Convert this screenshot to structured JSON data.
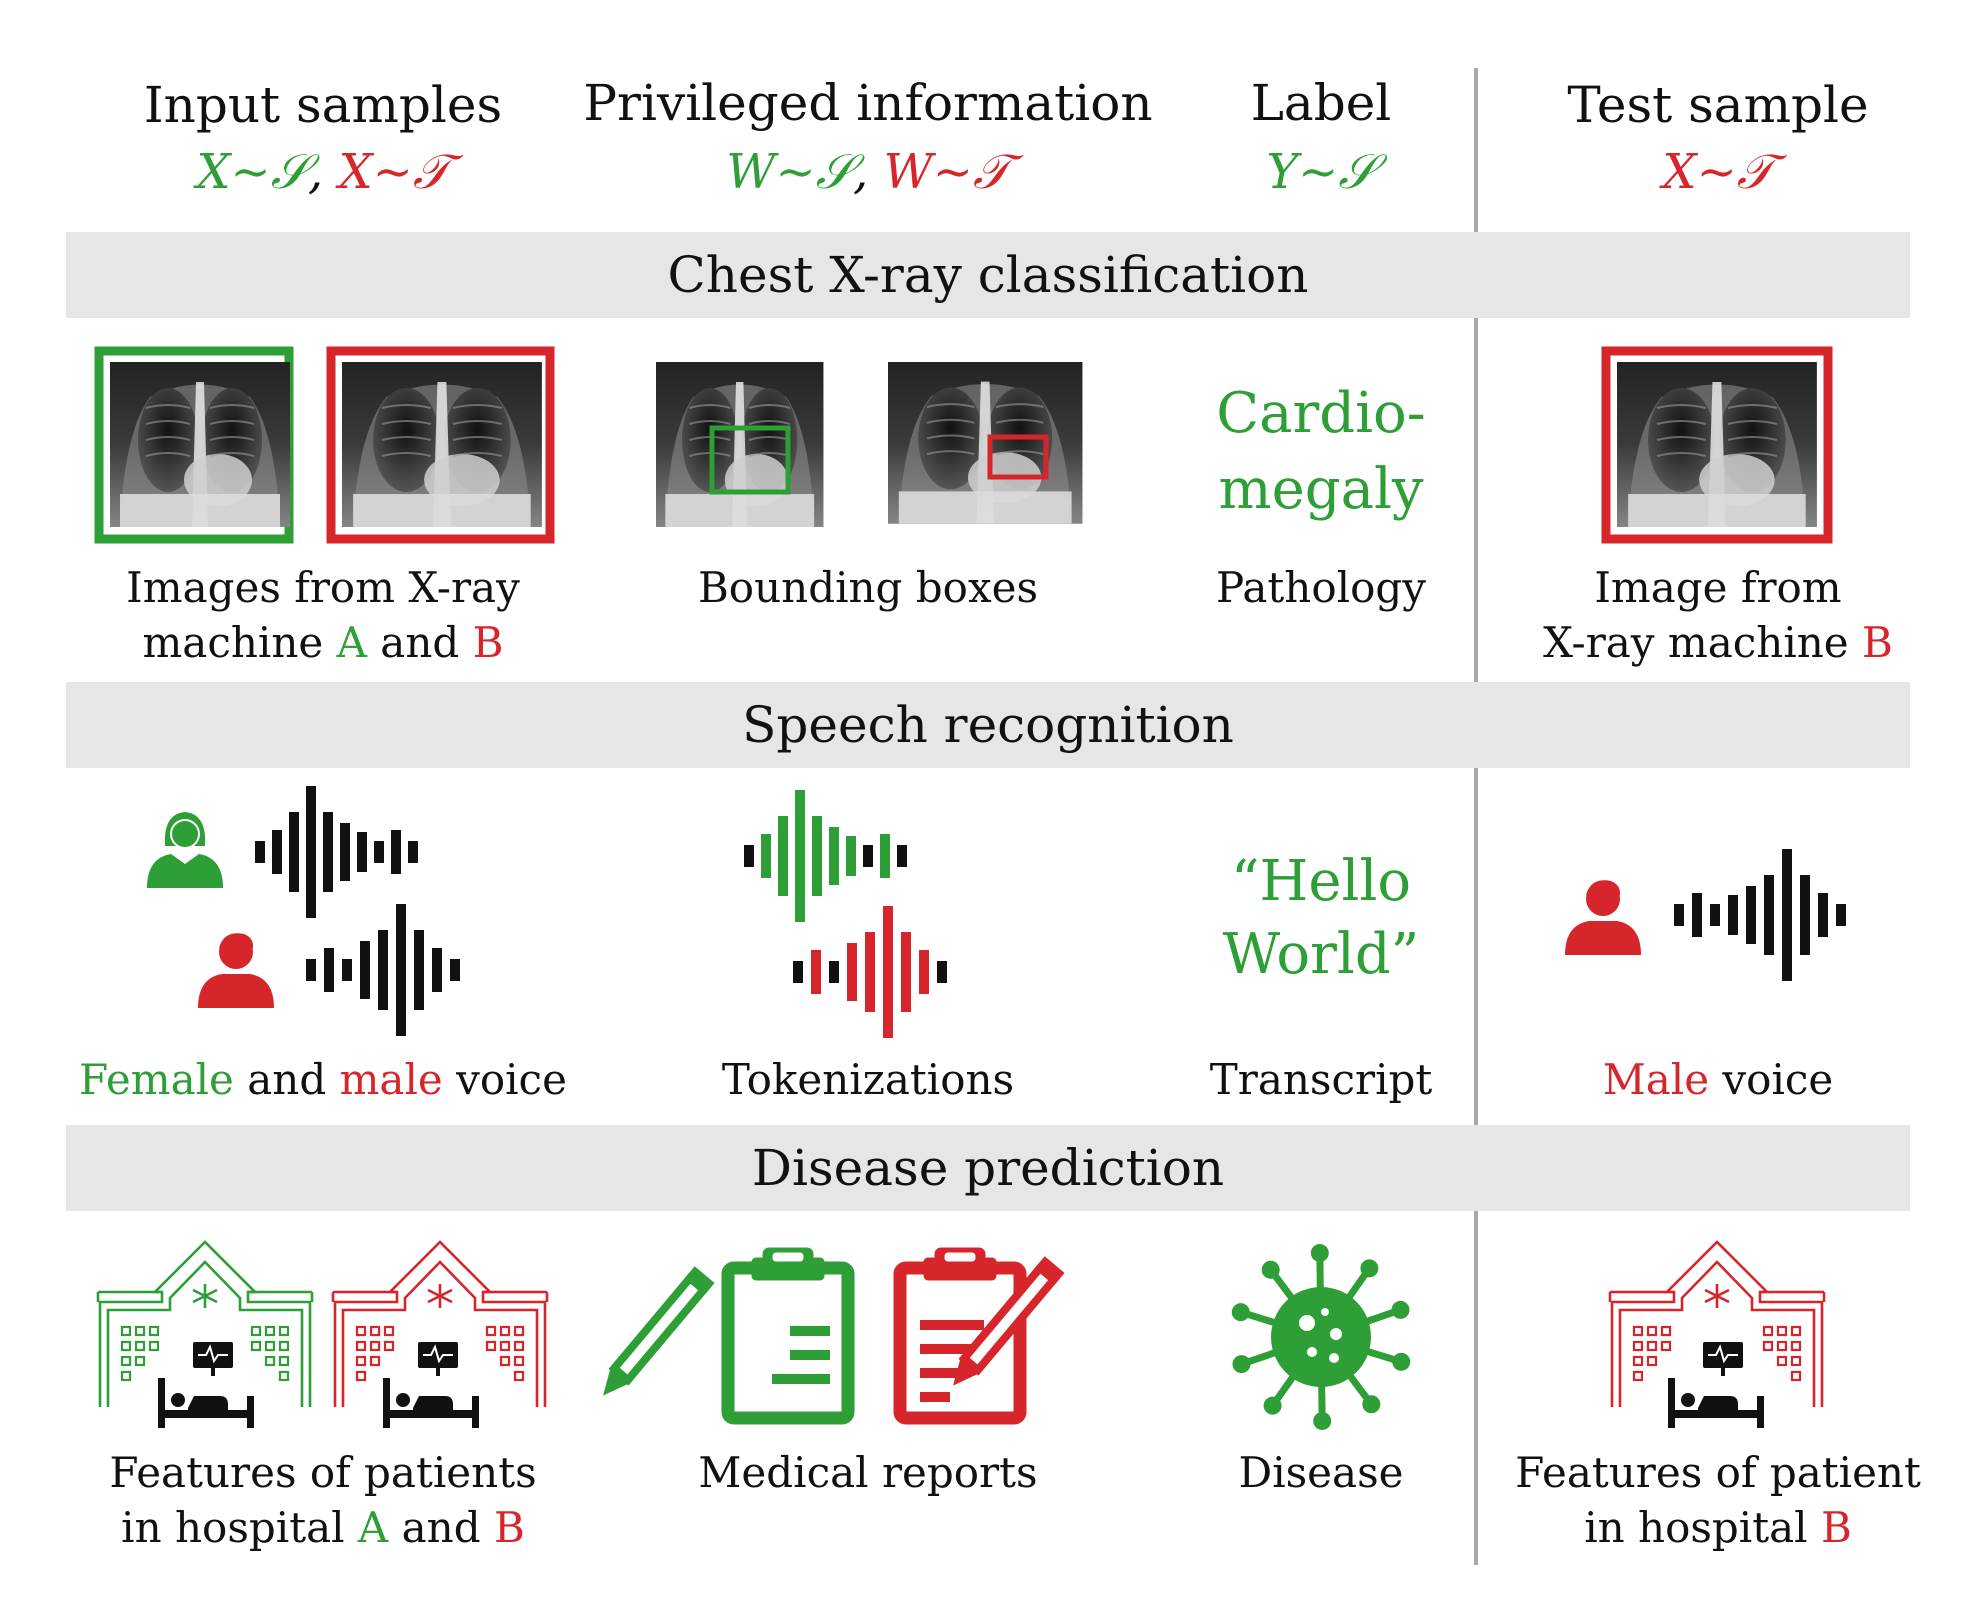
{
  "colors": {
    "green": "#2e9e36",
    "red": "#d7262b",
    "band": "#e5e5e5",
    "divider": "#999999",
    "text": "#111111"
  },
  "header": {
    "input": {
      "title": "Input samples",
      "green": "X∼𝒮",
      "sep": ", ",
      "red": "X∼𝒯"
    },
    "privileged": {
      "title": "Privileged  information",
      "green": "W∼𝒮",
      "sep": ", ",
      "red": "W∼𝒯"
    },
    "label": {
      "title": "Label",
      "green": "Y∼𝒮"
    },
    "test": {
      "title": "Test sample",
      "red": "X∼𝒯"
    }
  },
  "sections": {
    "xray": {
      "title": "Chest X-ray classification",
      "input_caption": {
        "line1": "Images from X-ray",
        "line2_pre": "machine ",
        "a": "A",
        "mid": " and ",
        "b": "B"
      },
      "privileged_caption": "Bounding boxes",
      "label_value": {
        "line1": "Cardio-",
        "line2": "megaly"
      },
      "label_caption": "Pathology",
      "test_caption": {
        "line1": "Image from",
        "line2_pre": "X-ray machine ",
        "b": "B"
      }
    },
    "speech": {
      "title": "Speech recognition",
      "input_caption": {
        "female": "Female",
        "mid": " and ",
        "male": "male",
        "post": " voice"
      },
      "privileged_caption": "Tokenizations",
      "label_value": {
        "line1": "“Hello",
        "line2": "World”"
      },
      "label_caption": "Transcript",
      "test_caption": {
        "male": "Male",
        "post": " voice"
      }
    },
    "disease": {
      "title": "Disease prediction",
      "input_caption": {
        "line1": "Features of patients",
        "line2_pre": "in hospital ",
        "a": "A",
        "mid": " and ",
        "b": "B"
      },
      "privileged_caption": "Medical reports",
      "label_caption": "Disease",
      "test_caption": {
        "line1": "Features of patient",
        "line2_pre": "in hospital ",
        "b": "B"
      }
    }
  },
  "icons": {
    "xray": "chest-xray-image",
    "female": "female-user-icon",
    "male": "male-user-icon",
    "waveform": "waveform-icon",
    "hospital": "hospital-icon",
    "report": "clipboard-report-icon",
    "virus": "virus-icon"
  }
}
